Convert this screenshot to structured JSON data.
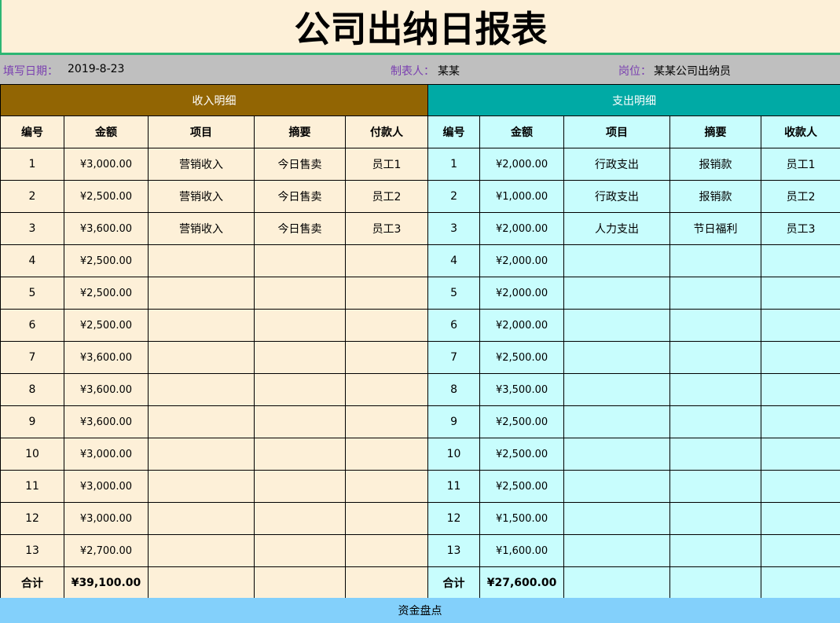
{
  "title": "公司出纳日报表",
  "info": {
    "date_label": "填写日期：",
    "date": "2019-8-23",
    "maker_label": "制表人：",
    "maker": "某某",
    "position_label": "岗位：",
    "position": "某某公司出纳员"
  },
  "income": {
    "section": "收入明细",
    "headers": [
      "编号",
      "金额",
      "项目",
      "摘要",
      "付款人"
    ],
    "rows": [
      [
        "1",
        "¥3,000.00",
        "营销收入",
        "今日售卖",
        "员工1"
      ],
      [
        "2",
        "¥2,500.00",
        "营销收入",
        "今日售卖",
        "员工2"
      ],
      [
        "3",
        "¥3,600.00",
        "营销收入",
        "今日售卖",
        "员工3"
      ],
      [
        "4",
        "¥2,500.00",
        "",
        "",
        ""
      ],
      [
        "5",
        "¥2,500.00",
        "",
        "",
        ""
      ],
      [
        "6",
        "¥2,500.00",
        "",
        "",
        ""
      ],
      [
        "7",
        "¥3,600.00",
        "",
        "",
        ""
      ],
      [
        "8",
        "¥3,600.00",
        "",
        "",
        ""
      ],
      [
        "9",
        "¥3,600.00",
        "",
        "",
        ""
      ],
      [
        "10",
        "¥3,000.00",
        "",
        "",
        ""
      ],
      [
        "11",
        "¥3,000.00",
        "",
        "",
        ""
      ],
      [
        "12",
        "¥3,000.00",
        "",
        "",
        ""
      ],
      [
        "13",
        "¥2,700.00",
        "",
        "",
        ""
      ]
    ],
    "total_label": "合计",
    "total": "¥39,100.00"
  },
  "expense": {
    "section": "支出明细",
    "headers": [
      "编号",
      "金额",
      "项目",
      "摘要",
      "收款人"
    ],
    "rows": [
      [
        "1",
        "¥2,000.00",
        "行政支出",
        "报销款",
        "员工1"
      ],
      [
        "2",
        "¥1,000.00",
        "行政支出",
        "报销款",
        "员工2"
      ],
      [
        "3",
        "¥2,000.00",
        "人力支出",
        "节日福利",
        "员工3"
      ],
      [
        "4",
        "¥2,000.00",
        "",
        "",
        ""
      ],
      [
        "5",
        "¥2,000.00",
        "",
        "",
        ""
      ],
      [
        "6",
        "¥2,000.00",
        "",
        "",
        ""
      ],
      [
        "7",
        "¥2,500.00",
        "",
        "",
        ""
      ],
      [
        "8",
        "¥3,500.00",
        "",
        "",
        ""
      ],
      [
        "9",
        "¥2,500.00",
        "",
        "",
        ""
      ],
      [
        "10",
        "¥2,500.00",
        "",
        "",
        ""
      ],
      [
        "11",
        "¥2,500.00",
        "",
        "",
        ""
      ],
      [
        "12",
        "¥1,500.00",
        "",
        "",
        ""
      ],
      [
        "13",
        "¥1,600.00",
        "",
        "",
        ""
      ]
    ],
    "total_label": "合计",
    "total": "¥27,600.00"
  },
  "footer": "资金盘点",
  "colors": {
    "income_header": "#926503",
    "expense_header": "#00aaa5",
    "income_bg": "#fdf0d8",
    "expense_bg": "#c8fdfd",
    "footer_bg": "#83d0fb"
  }
}
